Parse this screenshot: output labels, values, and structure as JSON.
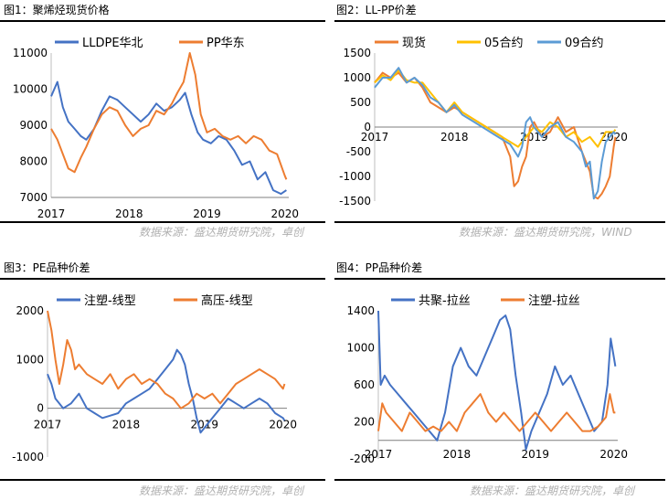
{
  "colors": {
    "blue": "#4472C4",
    "orange": "#ED7D31",
    "yellow": "#FFC000",
    "lightblue": "#5B9BD5"
  },
  "chart_data": [
    {
      "id": "c1",
      "type": "line",
      "title": "图1：聚烯烃现货价格",
      "source": "数据来源：盛达期货研究院，卓创",
      "xlim": [
        2017.0,
        2020.05
      ],
      "ylim": [
        7000,
        11000
      ],
      "yticks": [
        7000,
        8000,
        9000,
        10000,
        11000
      ],
      "ytick_labels": [
        "7000",
        "8000",
        "9000",
        "10000",
        "11000"
      ],
      "xticks": [
        2017,
        2018,
        2019,
        2020
      ],
      "xtick_labels": [
        "2017",
        "2018",
        "2019",
        "2020"
      ],
      "legend": "top",
      "series": [
        {
          "name": "LLDPE华北",
          "color": "#4472C4",
          "x": [
            2017.0,
            2017.08,
            2017.15,
            2017.22,
            2017.3,
            2017.38,
            2017.45,
            2017.55,
            2017.65,
            2017.75,
            2017.85,
            2017.95,
            2018.05,
            2018.15,
            2018.25,
            2018.35,
            2018.45,
            2018.55,
            2018.65,
            2018.72,
            2018.8,
            2018.88,
            2018.95,
            2019.05,
            2019.15,
            2019.25,
            2019.35,
            2019.45,
            2019.55,
            2019.65,
            2019.75,
            2019.85,
            2019.95,
            2020.02
          ],
          "y": [
            9800,
            10200,
            9500,
            9100,
            8900,
            8700,
            8600,
            8900,
            9400,
            9800,
            9700,
            9500,
            9300,
            9100,
            9300,
            9600,
            9400,
            9500,
            9700,
            9900,
            9300,
            8800,
            8600,
            8500,
            8700,
            8600,
            8300,
            7900,
            8000,
            7500,
            7700,
            7200,
            7100,
            7200
          ]
        },
        {
          "name": "PP华东",
          "color": "#ED7D31",
          "x": [
            2017.0,
            2017.08,
            2017.15,
            2017.22,
            2017.3,
            2017.38,
            2017.45,
            2017.55,
            2017.65,
            2017.75,
            2017.85,
            2017.95,
            2018.05,
            2018.15,
            2018.25,
            2018.35,
            2018.45,
            2018.55,
            2018.62,
            2018.7,
            2018.78,
            2018.85,
            2018.92,
            2019.0,
            2019.1,
            2019.2,
            2019.3,
            2019.4,
            2019.5,
            2019.6,
            2019.7,
            2019.8,
            2019.9,
            2020.0,
            2020.02
          ],
          "y": [
            8900,
            8600,
            8200,
            7800,
            7700,
            8100,
            8400,
            8900,
            9300,
            9500,
            9400,
            9000,
            8700,
            8900,
            9000,
            9400,
            9300,
            9600,
            9900,
            10200,
            11000,
            10400,
            9300,
            8800,
            8900,
            8700,
            8600,
            8700,
            8500,
            8700,
            8600,
            8300,
            8200,
            7600,
            7500
          ]
        }
      ]
    },
    {
      "id": "c2",
      "type": "line",
      "title": "图2：LL-PP价差",
      "source": "数据来源：盛达期货研究院，WIND",
      "xlim": [
        2017.0,
        2020.05
      ],
      "ylim": [
        -1500,
        1500
      ],
      "yticks": [
        -1500,
        -1000,
        -500,
        0,
        500,
        1000,
        1500
      ],
      "ytick_labels": [
        "-1500",
        "-1000",
        "-500",
        "0",
        "500",
        "1000",
        "1500"
      ],
      "xticks": [
        2017,
        2018,
        2019,
        2020
      ],
      "xtick_labels": [
        "2017",
        "2018",
        "2019",
        "2020"
      ],
      "legend": "top",
      "series": [
        {
          "name": "现货",
          "color": "#ED7D31",
          "x": [
            2017.0,
            2017.1,
            2017.2,
            2017.3,
            2017.4,
            2017.5,
            2017.6,
            2017.7,
            2017.8,
            2017.9,
            2018.0,
            2018.1,
            2018.2,
            2018.3,
            2018.4,
            2018.5,
            2018.6,
            2018.7,
            2018.75,
            2018.8,
            2018.85,
            2018.9,
            2018.95,
            2019.0,
            2019.1,
            2019.2,
            2019.3,
            2019.4,
            2019.5,
            2019.6,
            2019.7,
            2019.75,
            2019.8,
            2019.85,
            2019.9,
            2019.95,
            2020.0,
            2020.02
          ],
          "y": [
            900,
            1100,
            1000,
            1100,
            900,
            1000,
            800,
            500,
            400,
            300,
            400,
            300,
            200,
            100,
            0,
            -100,
            -200,
            -600,
            -1200,
            -1100,
            -800,
            -600,
            0,
            100,
            -200,
            -100,
            200,
            -100,
            0,
            -500,
            -900,
            -1400,
            -1450,
            -1350,
            -1200,
            -1000,
            -400,
            -200
          ]
        },
        {
          "name": "05合约",
          "color": "#FFC000",
          "x": [
            2017.0,
            2017.1,
            2017.2,
            2017.3,
            2017.4,
            2017.5,
            2017.6,
            2017.7,
            2017.8,
            2017.9,
            2018.0,
            2018.1,
            2018.2,
            2018.3,
            2018.4,
            2018.5,
            2018.6,
            2018.7,
            2018.8,
            2018.9,
            2019.0,
            2019.1,
            2019.2,
            2019.3,
            2019.4,
            2019.5,
            2019.6,
            2019.7,
            2019.8,
            2019.9,
            2020.0,
            2020.02
          ],
          "y": [
            900,
            1050,
            950,
            1150,
            950,
            900,
            900,
            700,
            500,
            300,
            500,
            300,
            200,
            100,
            0,
            -100,
            -200,
            -300,
            -400,
            -200,
            0,
            -100,
            100,
            0,
            -200,
            -100,
            -300,
            -200,
            -400,
            -100,
            -100,
            -50
          ]
        },
        {
          "name": "09合约",
          "color": "#5B9BD5",
          "x": [
            2017.0,
            2017.1,
            2017.2,
            2017.3,
            2017.4,
            2017.5,
            2017.6,
            2017.7,
            2017.8,
            2017.9,
            2018.0,
            2018.1,
            2018.2,
            2018.3,
            2018.4,
            2018.5,
            2018.6,
            2018.7,
            2018.8,
            2018.85,
            2018.9,
            2018.95,
            2019.0,
            2019.1,
            2019.2,
            2019.3,
            2019.4,
            2019.5,
            2019.6,
            2019.65,
            2019.7,
            2019.75,
            2019.8,
            2019.85,
            2019.9,
            2020.0,
            2020.02
          ],
          "y": [
            800,
            1000,
            1000,
            1200,
            900,
            1000,
            850,
            600,
            500,
            300,
            450,
            250,
            150,
            50,
            -50,
            -150,
            -250,
            -350,
            -600,
            -400,
            100,
            200,
            0,
            -200,
            0,
            100,
            -200,
            -300,
            -500,
            -800,
            -700,
            -1450,
            -1300,
            -700,
            -300,
            -100,
            -150
          ]
        }
      ]
    },
    {
      "id": "c3",
      "type": "line",
      "title": "图3：PE品种价差",
      "source": "数据来源：盛达期货研究院，卓创",
      "xlim": [
        2017.0,
        2020.05
      ],
      "ylim": [
        -1000,
        2000
      ],
      "yticks": [
        -1000,
        0,
        1000,
        2000
      ],
      "ytick_labels": [
        "-1000",
        "0",
        "1000",
        "2000"
      ],
      "xticks": [
        2017,
        2018,
        2019,
        2020
      ],
      "xtick_labels": [
        "2017",
        "2018",
        "2019",
        "2020"
      ],
      "legend": "top",
      "series": [
        {
          "name": "注塑-线型",
          "color": "#4472C4",
          "x": [
            2017.0,
            2017.05,
            2017.1,
            2017.2,
            2017.3,
            2017.4,
            2017.5,
            2017.6,
            2017.7,
            2017.8,
            2017.9,
            2018.0,
            2018.1,
            2018.2,
            2018.3,
            2018.4,
            2018.5,
            2018.6,
            2018.65,
            2018.7,
            2018.75,
            2018.8,
            2018.85,
            2018.9,
            2018.95,
            2019.0,
            2019.1,
            2019.2,
            2019.3,
            2019.4,
            2019.5,
            2019.6,
            2019.7,
            2019.8,
            2019.9,
            2020.0,
            2020.02
          ],
          "y": [
            700,
            500,
            200,
            0,
            100,
            300,
            0,
            -100,
            -200,
            -150,
            -100,
            100,
            200,
            300,
            400,
            600,
            800,
            1000,
            1200,
            1100,
            900,
            500,
            200,
            -200,
            -500,
            -400,
            -200,
            0,
            200,
            100,
            0,
            100,
            200,
            100,
            -100,
            -200,
            -250
          ]
        },
        {
          "name": "高压-线型",
          "color": "#ED7D31",
          "x": [
            2017.0,
            2017.05,
            2017.1,
            2017.15,
            2017.2,
            2017.25,
            2017.3,
            2017.35,
            2017.4,
            2017.5,
            2017.6,
            2017.7,
            2017.8,
            2017.9,
            2018.0,
            2018.1,
            2018.2,
            2018.3,
            2018.4,
            2018.5,
            2018.6,
            2018.7,
            2018.8,
            2018.9,
            2019.0,
            2019.1,
            2019.2,
            2019.3,
            2019.4,
            2019.5,
            2019.6,
            2019.7,
            2019.8,
            2019.9,
            2020.0,
            2020.02
          ],
          "y": [
            2000,
            1600,
            1000,
            500,
            900,
            1400,
            1200,
            800,
            900,
            700,
            600,
            500,
            700,
            400,
            600,
            700,
            500,
            600,
            500,
            300,
            200,
            0,
            100,
            300,
            200,
            300,
            100,
            300,
            500,
            600,
            700,
            800,
            700,
            600,
            400,
            500
          ]
        }
      ]
    },
    {
      "id": "c4",
      "type": "line",
      "title": "图4：PP品种价差",
      "source": "数据来源：盛达期货研究院，卓创",
      "xlim": [
        2017.0,
        2020.05
      ],
      "ylim": [
        -200,
        1400
      ],
      "yticks": [
        -200,
        200,
        600,
        1000,
        1400
      ],
      "ytick_labels": [
        "-200",
        "200",
        "600",
        "1000",
        "1400"
      ],
      "xticks": [
        2017,
        2018,
        2019,
        2020
      ],
      "xtick_labels": [
        "2017",
        "2018",
        "2019",
        "2020"
      ],
      "legend": "top",
      "series": [
        {
          "name": "共聚-拉丝",
          "color": "#4472C4",
          "x": [
            2017.0,
            2017.03,
            2017.08,
            2017.15,
            2017.25,
            2017.35,
            2017.45,
            2017.55,
            2017.65,
            2017.75,
            2017.85,
            2017.95,
            2018.05,
            2018.15,
            2018.25,
            2018.35,
            2018.45,
            2018.55,
            2018.62,
            2018.68,
            2018.75,
            2018.82,
            2018.88,
            2018.95,
            2019.05,
            2019.15,
            2019.25,
            2019.35,
            2019.45,
            2019.55,
            2019.65,
            2019.75,
            2019.85,
            2019.92,
            2019.96,
            2020.0,
            2020.02
          ],
          "y": [
            1400,
            600,
            700,
            600,
            500,
            400,
            300,
            200,
            100,
            0,
            300,
            800,
            1000,
            800,
            700,
            900,
            1100,
            1300,
            1350,
            1200,
            700,
            300,
            -100,
            100,
            300,
            500,
            800,
            600,
            700,
            500,
            300,
            100,
            200,
            600,
            1100,
            900,
            800
          ]
        },
        {
          "name": "注塑-拉丝",
          "color": "#ED7D31",
          "x": [
            2017.0,
            2017.05,
            2017.1,
            2017.2,
            2017.3,
            2017.4,
            2017.5,
            2017.6,
            2017.7,
            2017.8,
            2017.9,
            2018.0,
            2018.1,
            2018.2,
            2018.3,
            2018.4,
            2018.5,
            2018.6,
            2018.7,
            2018.8,
            2018.9,
            2019.0,
            2019.1,
            2019.2,
            2019.3,
            2019.4,
            2019.5,
            2019.6,
            2019.7,
            2019.8,
            2019.9,
            2019.95,
            2020.0,
            2020.02
          ],
          "y": [
            100,
            400,
            300,
            200,
            100,
            300,
            200,
            100,
            150,
            100,
            200,
            100,
            300,
            400,
            500,
            300,
            200,
            300,
            200,
            100,
            200,
            300,
            200,
            100,
            200,
            300,
            200,
            100,
            100,
            150,
            250,
            500,
            300,
            300
          ]
        }
      ]
    }
  ]
}
